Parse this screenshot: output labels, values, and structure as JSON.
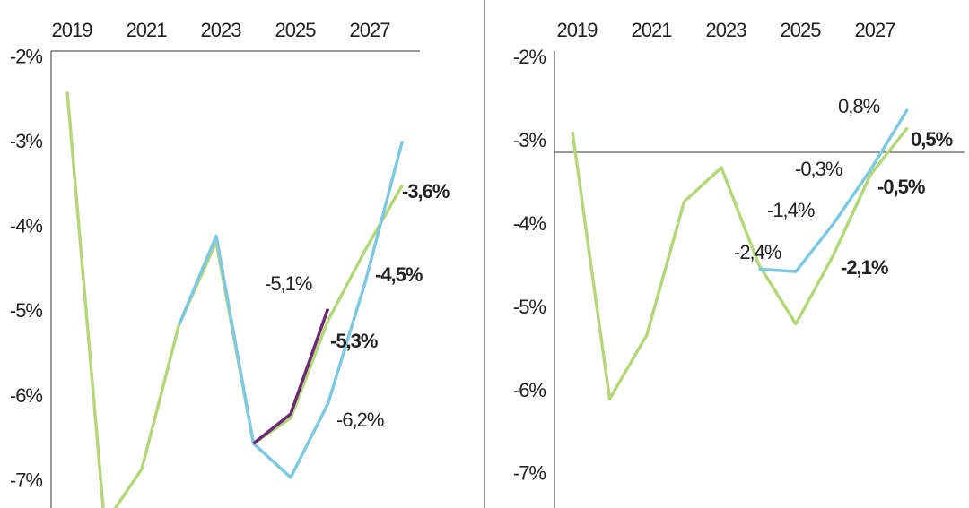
{
  "chart_data": [
    {
      "type": "line",
      "categories": [
        "2019",
        null,
        "2021",
        null,
        "2023",
        null,
        "2025",
        null,
        "2027",
        null
      ],
      "ylim": [
        -7.31,
        -1.92
      ],
      "yticks": [
        {
          "value": -2,
          "label": "-2%"
        },
        {
          "value": -3,
          "label": "-3%"
        },
        {
          "value": -4,
          "label": "-4%"
        },
        {
          "value": -5,
          "label": "-5%"
        },
        {
          "value": -6,
          "label": "-6%"
        },
        {
          "value": -7,
          "label": "-7%"
        }
      ],
      "series": [
        {
          "color": "#b5d67a",
          "values": [
            -2.4,
            -7.5,
            -6.85,
            -5.15,
            -4.17,
            -6.55,
            -6.25,
            -5.1,
            -4.27,
            -3.5
          ]
        },
        {
          "color": "#7ec8e0",
          "values": [
            null,
            null,
            null,
            -5.15,
            -4.1,
            -6.55,
            -6.95,
            -6.08,
            -4.65,
            -2.98
          ]
        },
        {
          "color": "#6b2a74",
          "values": [
            null,
            null,
            null,
            null,
            null,
            -6.55,
            -6.2,
            -4.96,
            null,
            null
          ]
        }
      ],
      "annotations": [
        {
          "text": "-3,6%",
          "bold": true
        },
        {
          "text": "-4,5%",
          "bold": true
        },
        {
          "text": "-5,1%",
          "bold": false
        },
        {
          "text": "-5,3%",
          "bold": true
        },
        {
          "text": "-6,2%",
          "bold": false
        }
      ]
    },
    {
      "type": "line",
      "categories": [
        "2019",
        null,
        "2021",
        null,
        "2023",
        null,
        "2025",
        null,
        "2027",
        null
      ],
      "ylim": [
        -7.4,
        -1.91
      ],
      "yticks": [
        {
          "value": -2,
          "label": "-2%"
        },
        {
          "value": -3,
          "label": "-3%"
        },
        {
          "value": -4,
          "label": "-4%"
        },
        {
          "value": -5,
          "label": "-5%"
        },
        {
          "value": -6,
          "label": "-6%"
        },
        {
          "value": -7,
          "label": "-7%"
        }
      ],
      "series": [
        {
          "color": "#b5d67a",
          "values": [
            -2.88,
            -6.09,
            -5.32,
            -3.72,
            -3.31,
            -4.47,
            -5.19,
            -4.37,
            -3.4,
            -2.83
          ]
        },
        {
          "color": "#7ec8e0",
          "values": [
            null,
            null,
            null,
            null,
            null,
            -4.53,
            -4.56,
            -3.99,
            -3.34,
            -2.61
          ]
        }
      ],
      "annotations": [
        {
          "text": "0,8%",
          "bold": false
        },
        {
          "text": "0,5%",
          "bold": true
        },
        {
          "text": "-0,3%",
          "bold": false
        },
        {
          "text": "-0,5%",
          "bold": true
        },
        {
          "text": "-1,4%",
          "bold": false
        },
        {
          "text": "-2,4%",
          "bold": false
        },
        {
          "text": "-2,1%",
          "bold": true
        }
      ]
    }
  ]
}
